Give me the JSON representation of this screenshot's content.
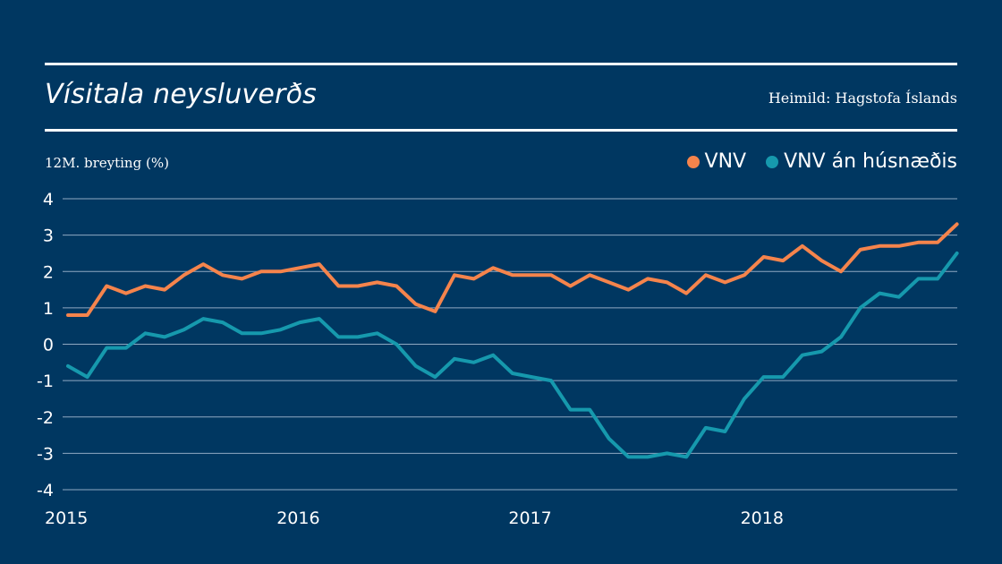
{
  "chart_data": {
    "type": "line",
    "title": "Vísitala neysluverðs",
    "source": "Heimild: Hagstofa Íslands",
    "ylabel": "12M. breyting (%)",
    "xlabel": "",
    "ylim": [
      -4,
      4
    ],
    "yticks": [
      4,
      3,
      2,
      1,
      0,
      -1,
      -2,
      -3,
      -4
    ],
    "xticks": [
      {
        "label": "2015",
        "index": 0
      },
      {
        "label": "2016",
        "index": 12
      },
      {
        "label": "2017",
        "index": 24
      },
      {
        "label": "2018",
        "index": 36
      }
    ],
    "x_start": "2015-01",
    "x_frequency": "monthly",
    "grid": true,
    "legend_position": "top-right",
    "series": [
      {
        "name": "VNV",
        "color": "#f5844c",
        "values": [
          0.8,
          0.8,
          1.6,
          1.4,
          1.6,
          1.5,
          1.9,
          2.2,
          1.9,
          1.8,
          2.0,
          2.0,
          2.1,
          2.2,
          1.6,
          1.6,
          1.7,
          1.6,
          1.1,
          0.9,
          1.9,
          1.8,
          2.1,
          1.9,
          1.9,
          1.9,
          1.6,
          1.9,
          1.7,
          1.5,
          1.8,
          1.7,
          1.4,
          1.9,
          1.7,
          1.9,
          2.4,
          2.3,
          2.7,
          2.3,
          2.0,
          2.6,
          2.7,
          2.7,
          2.8,
          2.8,
          3.3
        ]
      },
      {
        "name": "VNV án húsnæðis",
        "color": "#1699ad",
        "values": [
          -0.6,
          -0.9,
          -0.1,
          -0.1,
          0.3,
          0.2,
          0.4,
          0.7,
          0.6,
          0.3,
          0.3,
          0.4,
          0.6,
          0.7,
          0.2,
          0.2,
          0.3,
          0.0,
          -0.6,
          -0.9,
          -0.4,
          -0.5,
          -0.3,
          -0.8,
          -0.9,
          -1.0,
          -1.8,
          -1.8,
          -2.6,
          -3.1,
          -3.1,
          -3.0,
          -3.1,
          -2.3,
          -2.4,
          -1.5,
          -0.9,
          -0.9,
          -0.3,
          -0.2,
          0.2,
          1.0,
          1.4,
          1.3,
          1.8,
          1.8,
          2.5
        ]
      }
    ]
  }
}
